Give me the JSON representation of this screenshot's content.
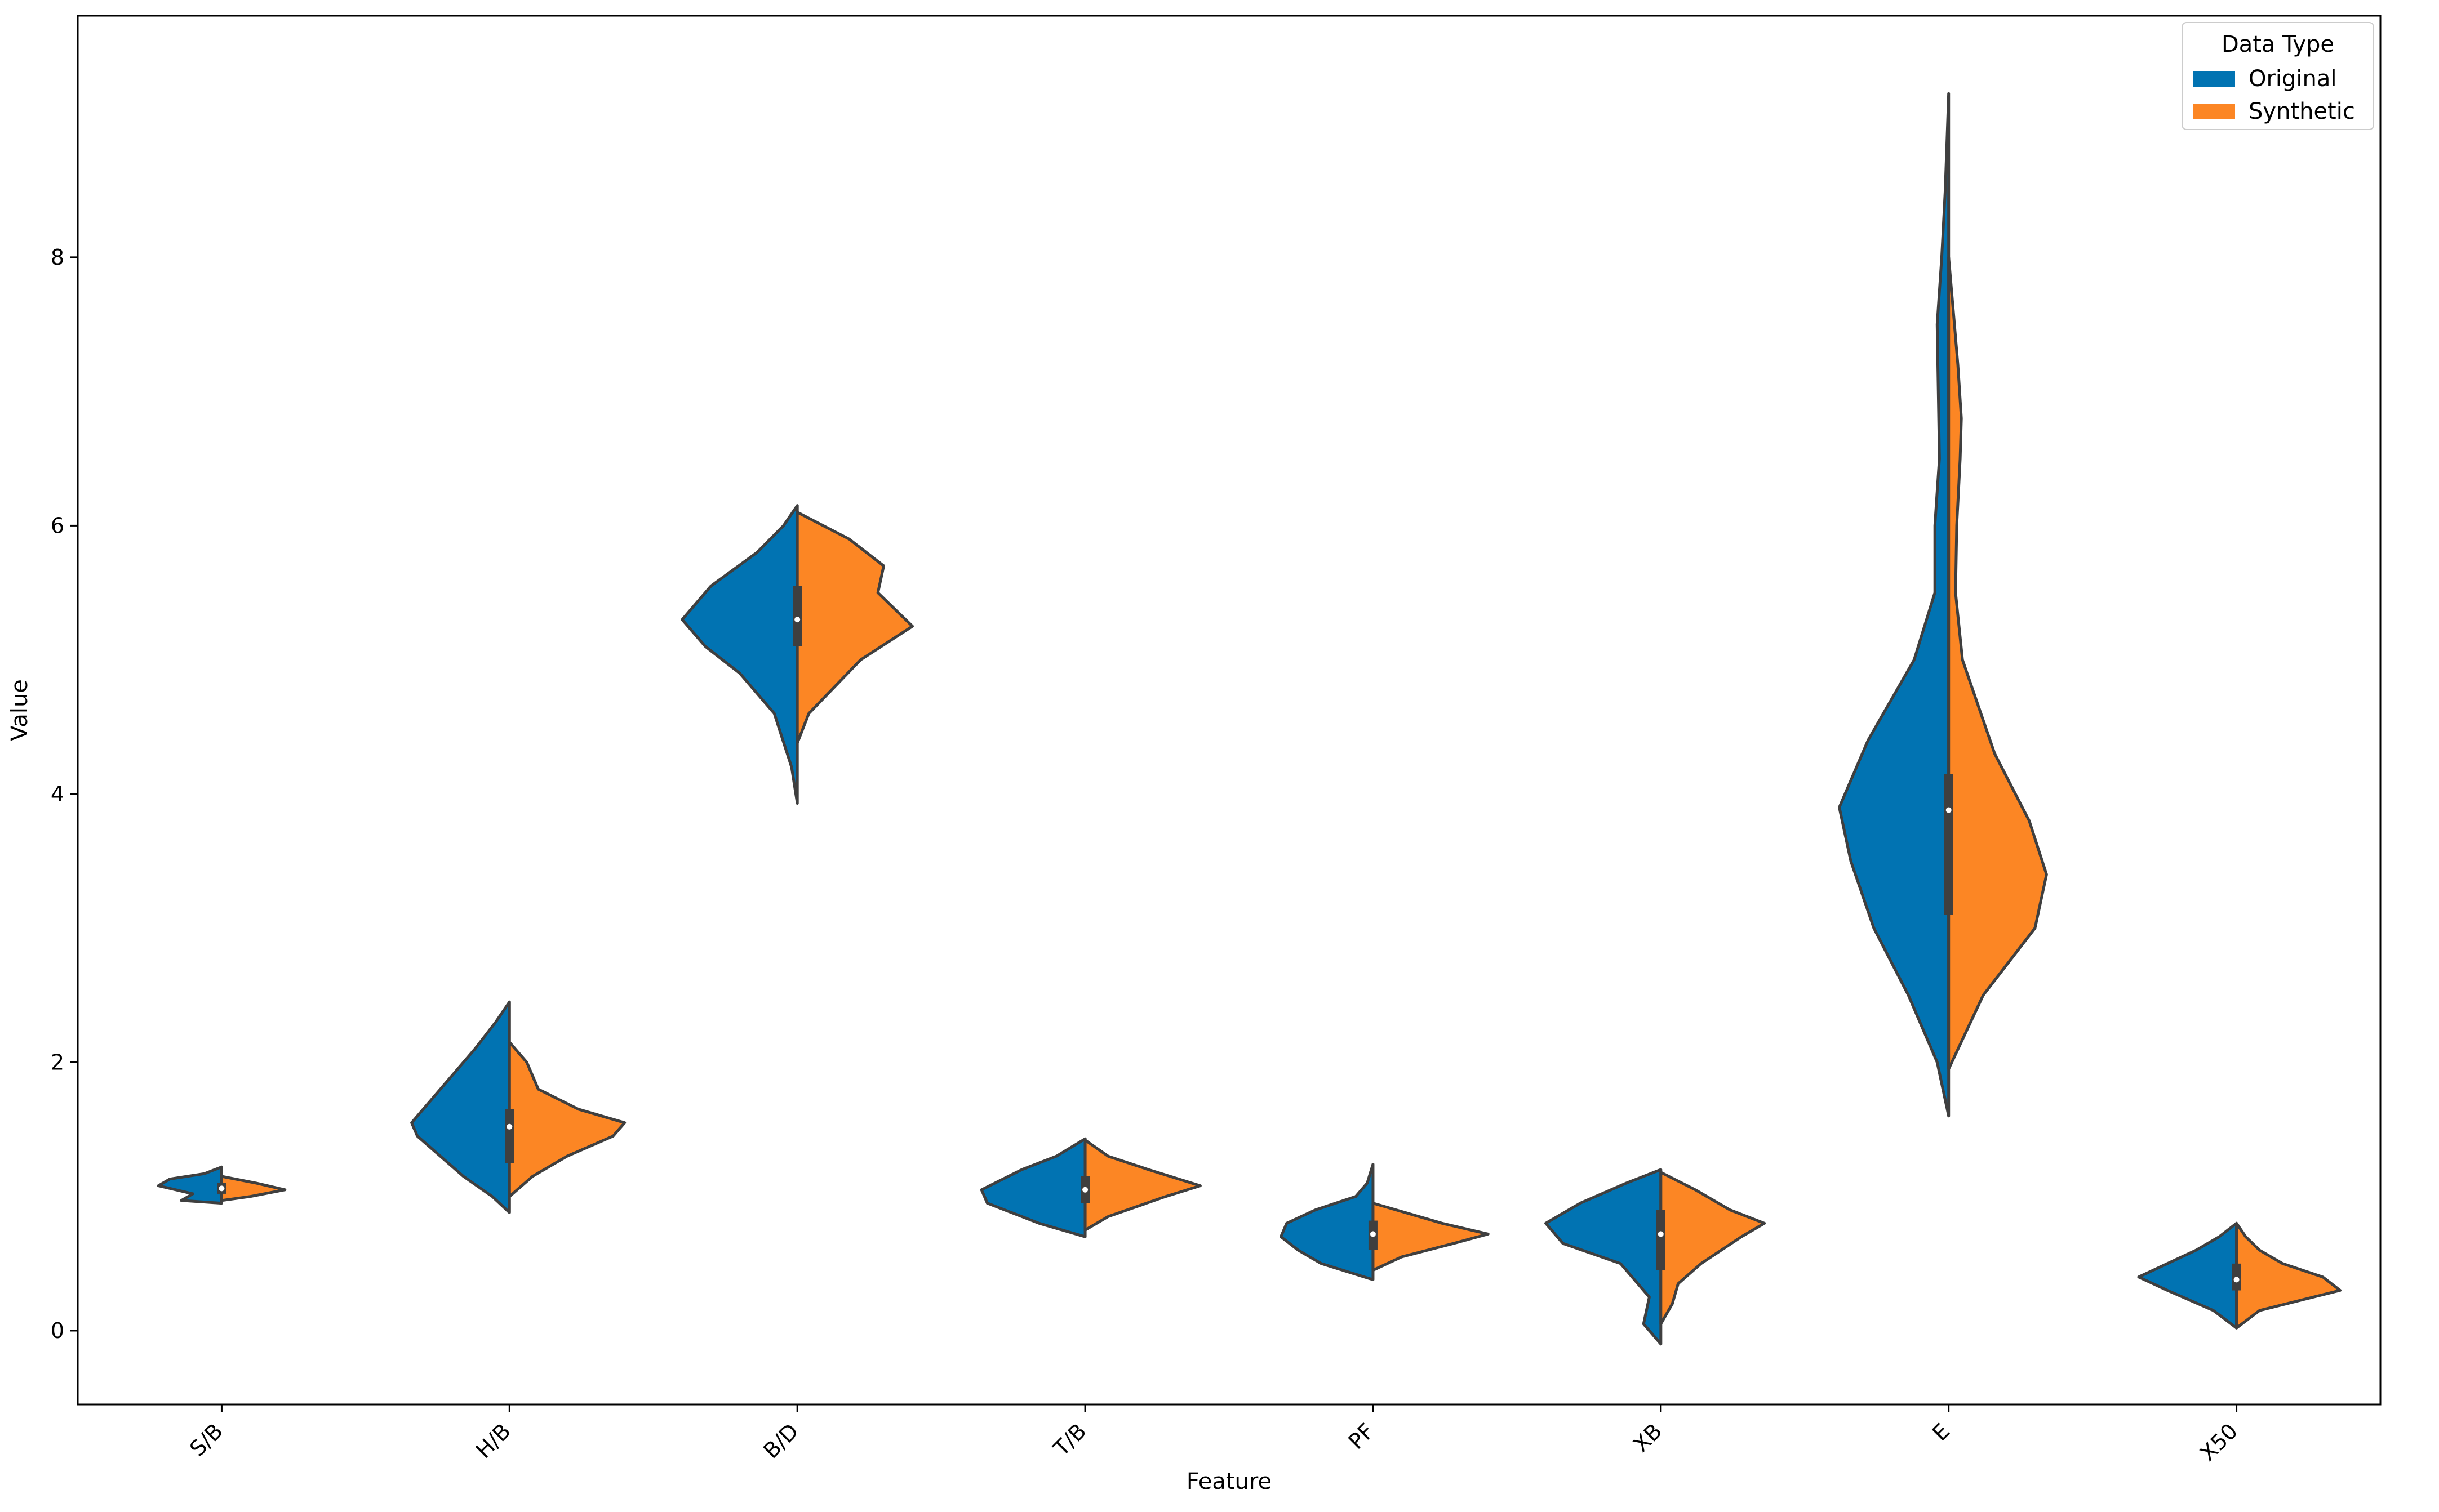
{
  "chart_data": {
    "type": "violin",
    "variant": "split",
    "title": "",
    "xlabel": "Feature",
    "ylabel": "Value",
    "categories": [
      "S/B",
      "H/B",
      "B/D",
      "T/B",
      "PF",
      "XB",
      "E",
      "X50"
    ],
    "ylim": [
      -0.55,
      9.8
    ],
    "yticks": [
      0,
      2,
      4,
      6,
      8
    ],
    "grid": false,
    "legend": {
      "title": "Data Type",
      "placement": "top-right",
      "entries": [
        {
          "name": "Original",
          "color": "#0173b2"
        },
        {
          "name": "Synthetic",
          "color": "#fc8624"
        }
      ]
    },
    "outline_color": "#3f3f3f",
    "box_color": "#3f3f3f",
    "median_color": "#ffffff",
    "series": [
      {
        "name": "Original",
        "side": "left",
        "color": "#0173b2",
        "violins": [
          {
            "category": "S/B",
            "profile": [
              [
                0.95,
                0
              ],
              [
                0.97,
                0.35
              ],
              [
                1.02,
                0.25
              ],
              [
                1.08,
                0.55
              ],
              [
                1.13,
                0.45
              ],
              [
                1.17,
                0.15
              ],
              [
                1.22,
                0
              ]
            ]
          },
          {
            "category": "H/B",
            "profile": [
              [
                0.88,
                0
              ],
              [
                1.0,
                0.15
              ],
              [
                1.15,
                0.4
              ],
              [
                1.3,
                0.6
              ],
              [
                1.45,
                0.8
              ],
              [
                1.55,
                0.85
              ],
              [
                1.7,
                0.7
              ],
              [
                1.9,
                0.5
              ],
              [
                2.1,
                0.3
              ],
              [
                2.3,
                0.12
              ],
              [
                2.45,
                0
              ]
            ]
          },
          {
            "category": "B/D",
            "profile": [
              [
                3.93,
                0
              ],
              [
                4.2,
                0.05
              ],
              [
                4.6,
                0.2
              ],
              [
                4.9,
                0.5
              ],
              [
                5.1,
                0.8
              ],
              [
                5.3,
                1.0
              ],
              [
                5.55,
                0.75
              ],
              [
                5.8,
                0.35
              ],
              [
                6.0,
                0.12
              ],
              [
                6.15,
                0
              ]
            ]
          },
          {
            "category": "T/B",
            "profile": [
              [
                0.7,
                0
              ],
              [
                0.8,
                0.4
              ],
              [
                0.95,
                0.85
              ],
              [
                1.05,
                0.9
              ],
              [
                1.2,
                0.55
              ],
              [
                1.3,
                0.25
              ],
              [
                1.43,
                0
              ]
            ]
          },
          {
            "category": "PF",
            "profile": [
              [
                0.38,
                0
              ],
              [
                0.5,
                0.45
              ],
              [
                0.6,
                0.65
              ],
              [
                0.7,
                0.8
              ],
              [
                0.8,
                0.75
              ],
              [
                0.9,
                0.5
              ],
              [
                1.0,
                0.15
              ],
              [
                1.1,
                0.05
              ],
              [
                1.24,
                0
              ]
            ]
          },
          {
            "category": "XB",
            "profile": [
              [
                -0.1,
                0
              ],
              [
                0.05,
                0.15
              ],
              [
                0.25,
                0.1
              ],
              [
                0.5,
                0.35
              ],
              [
                0.65,
                0.85
              ],
              [
                0.8,
                1.0
              ],
              [
                0.95,
                0.7
              ],
              [
                1.1,
                0.3
              ],
              [
                1.2,
                0
              ]
            ]
          },
          {
            "category": "E",
            "profile": [
              [
                1.6,
                0
              ],
              [
                2.0,
                0.1
              ],
              [
                2.5,
                0.35
              ],
              [
                3.0,
                0.65
              ],
              [
                3.5,
                0.85
              ],
              [
                3.9,
                0.95
              ],
              [
                4.4,
                0.7
              ],
              [
                5.0,
                0.3
              ],
              [
                5.5,
                0.12
              ],
              [
                6.0,
                0.12
              ],
              [
                6.5,
                0.08
              ],
              [
                7.0,
                0.09
              ],
              [
                7.5,
                0.1
              ],
              [
                8.0,
                0.06
              ],
              [
                8.5,
                0.03
              ],
              [
                9.22,
                0
              ]
            ]
          },
          {
            "category": "X50",
            "profile": [
              [
                0.02,
                0
              ],
              [
                0.15,
                0.2
              ],
              [
                0.3,
                0.6
              ],
              [
                0.4,
                0.85
              ],
              [
                0.5,
                0.6
              ],
              [
                0.6,
                0.35
              ],
              [
                0.7,
                0.15
              ],
              [
                0.8,
                0
              ]
            ]
          }
        ]
      },
      {
        "name": "Synthetic",
        "side": "right",
        "color": "#fc8624",
        "violins": [
          {
            "category": "S/B",
            "profile": [
              [
                0.97,
                0
              ],
              [
                1.0,
                0.25
              ],
              [
                1.05,
                0.55
              ],
              [
                1.1,
                0.3
              ],
              [
                1.15,
                0
              ]
            ]
          },
          {
            "category": "H/B",
            "profile": [
              [
                1.0,
                0
              ],
              [
                1.15,
                0.2
              ],
              [
                1.3,
                0.5
              ],
              [
                1.45,
                0.9
              ],
              [
                1.55,
                1.0
              ],
              [
                1.65,
                0.6
              ],
              [
                1.8,
                0.25
              ],
              [
                2.0,
                0.15
              ],
              [
                2.15,
                0
              ]
            ]
          },
          {
            "category": "B/D",
            "profile": [
              [
                4.38,
                0
              ],
              [
                4.6,
                0.1
              ],
              [
                5.0,
                0.55
              ],
              [
                5.25,
                1.0
              ],
              [
                5.5,
                0.7
              ],
              [
                5.7,
                0.75
              ],
              [
                5.9,
                0.45
              ],
              [
                6.1,
                0
              ]
            ]
          },
          {
            "category": "T/B",
            "profile": [
              [
                0.75,
                0
              ],
              [
                0.85,
                0.2
              ],
              [
                1.0,
                0.7
              ],
              [
                1.08,
                1.0
              ],
              [
                1.2,
                0.55
              ],
              [
                1.3,
                0.2
              ],
              [
                1.42,
                0
              ]
            ]
          },
          {
            "category": "PF",
            "profile": [
              [
                0.45,
                0
              ],
              [
                0.55,
                0.25
              ],
              [
                0.65,
                0.7
              ],
              [
                0.72,
                1.0
              ],
              [
                0.8,
                0.6
              ],
              [
                0.9,
                0.2
              ],
              [
                0.95,
                0
              ]
            ]
          },
          {
            "category": "XB",
            "profile": [
              [
                0.05,
                0
              ],
              [
                0.2,
                0.1
              ],
              [
                0.35,
                0.15
              ],
              [
                0.5,
                0.35
              ],
              [
                0.7,
                0.7
              ],
              [
                0.8,
                0.9
              ],
              [
                0.9,
                0.6
              ],
              [
                1.05,
                0.3
              ],
              [
                1.18,
                0
              ]
            ]
          },
          {
            "category": "E",
            "profile": [
              [
                1.95,
                0
              ],
              [
                2.5,
                0.3
              ],
              [
                3.0,
                0.75
              ],
              [
                3.4,
                0.85
              ],
              [
                3.8,
                0.7
              ],
              [
                4.3,
                0.4
              ],
              [
                5.0,
                0.12
              ],
              [
                5.5,
                0.06
              ],
              [
                6.0,
                0.07
              ],
              [
                6.5,
                0.1
              ],
              [
                6.8,
                0.11
              ],
              [
                7.2,
                0.08
              ],
              [
                7.6,
                0.04
              ],
              [
                8.0,
                0
              ]
            ]
          },
          {
            "category": "X50",
            "profile": [
              [
                0.02,
                0
              ],
              [
                0.15,
                0.2
              ],
              [
                0.3,
                0.9
              ],
              [
                0.4,
                0.75
              ],
              [
                0.5,
                0.4
              ],
              [
                0.6,
                0.2
              ],
              [
                0.7,
                0.08
              ],
              [
                0.8,
                0
              ]
            ]
          }
        ]
      }
    ],
    "boxes": [
      {
        "category": "S/B",
        "q1": 1.02,
        "q3": 1.1,
        "median": 1.06
      },
      {
        "category": "H/B",
        "q1": 1.25,
        "q3": 1.65,
        "median": 1.52
      },
      {
        "category": "B/D",
        "q1": 5.1,
        "q3": 5.55,
        "median": 5.3
      },
      {
        "category": "T/B",
        "q1": 0.95,
        "q3": 1.15,
        "median": 1.05
      },
      {
        "category": "PF",
        "q1": 0.6,
        "q3": 0.82,
        "median": 0.72
      },
      {
        "category": "XB",
        "q1": 0.45,
        "q3": 0.9,
        "median": 0.72
      },
      {
        "category": "E",
        "q1": 3.1,
        "q3": 4.15,
        "median": 3.88
      },
      {
        "category": "X50",
        "q1": 0.3,
        "q3": 0.5,
        "median": 0.38
      }
    ]
  }
}
